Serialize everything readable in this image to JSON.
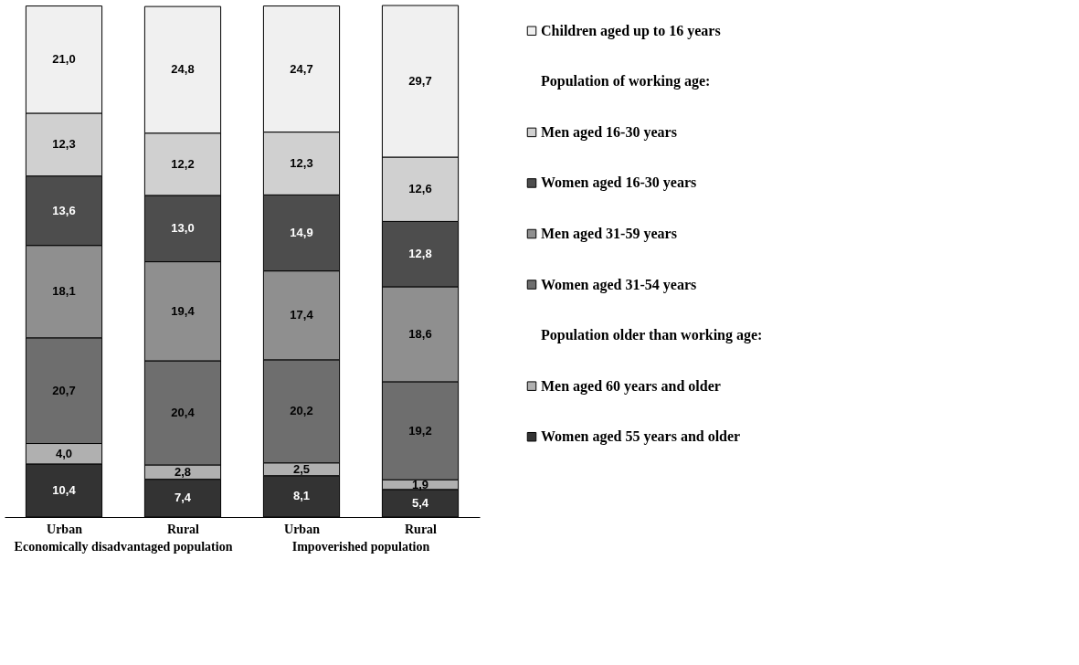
{
  "chart_data": {
    "type": "bar",
    "stacked": true,
    "legend": "right",
    "grid": false,
    "categories": [
      "Urban",
      "Rural",
      "Urban",
      "Rural"
    ],
    "series": [
      {
        "name": "Women aged 55 years and older",
        "color": "#333333",
        "values": [
          10.4,
          7.4,
          8.1,
          5.4
        ],
        "value_labels": [
          "10,4",
          "7,4",
          "8,1",
          "5,4"
        ]
      },
      {
        "name": "Men aged 60 years and older",
        "color": "#b0b0b0",
        "values": [
          4.0,
          2.8,
          2.5,
          1.9
        ],
        "value_labels": [
          "4,0",
          "2,8",
          "2,5",
          "1,9"
        ]
      },
      {
        "name": "Women aged 31-54 years",
        "color": "#6e6e6e",
        "values": [
          20.7,
          20.4,
          20.2,
          19.2
        ],
        "value_labels": [
          "20,7",
          "20,4",
          "20,2",
          "19,2"
        ]
      },
      {
        "name": "Men aged 31-59 years",
        "color": "#8f8f8f",
        "values": [
          18.1,
          19.4,
          17.4,
          18.6
        ],
        "value_labels": [
          "18,1",
          "19,4",
          "17,4",
          "18,6"
        ]
      },
      {
        "name": "Women aged 16-30 years",
        "color": "#4d4d4d",
        "values": [
          13.6,
          13.0,
          14.9,
          12.8
        ],
        "value_labels": [
          "13,6",
          "13,0",
          "14,9",
          "12,8"
        ]
      },
      {
        "name": "Men aged 16-30 years",
        "color": "#d0d0d0",
        "values": [
          12.3,
          12.2,
          12.3,
          12.6
        ],
        "value_labels": [
          "12,3",
          "12,2",
          "12,3",
          "12,6"
        ]
      },
      {
        "name": "Children aged up to 16 years",
        "color": "#f0f0f0",
        "values": [
          21.0,
          24.8,
          24.7,
          29.7
        ],
        "value_labels": [
          "21,0",
          "24,8",
          "24,7",
          "29,7"
        ]
      }
    ],
    "annotations": [
      "Population of working age:",
      "Population older than working age:",
      "Economically disadvantaged population",
      "Impoverished population"
    ]
  }
}
